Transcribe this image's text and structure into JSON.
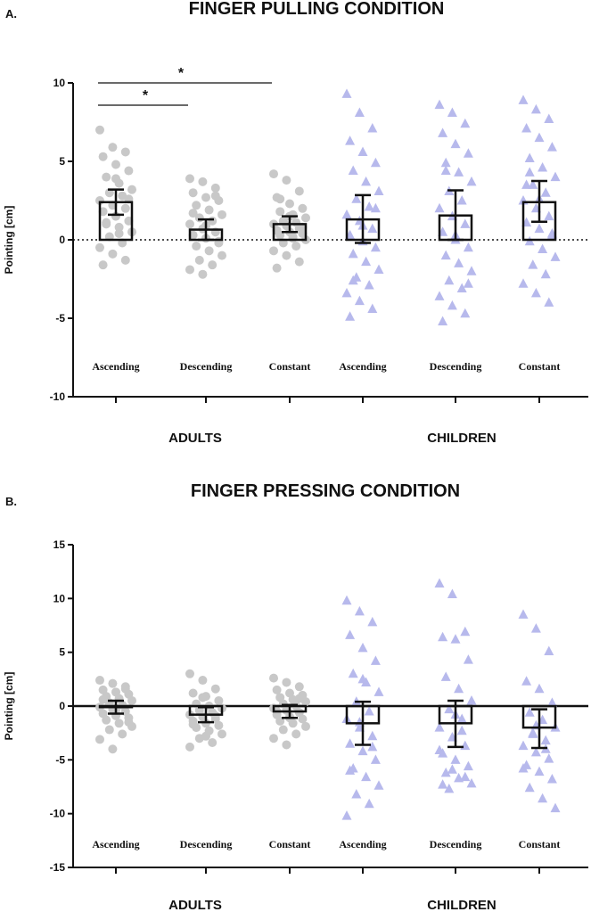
{
  "chart_data": [
    {
      "type": "bar",
      "panel": "A.",
      "title": "FINGER PULLING CONDITION",
      "ylabel": "Pointing [cm]",
      "ylim": [
        -10,
        10
      ],
      "yticks": [
        "10",
        "5",
        "0",
        "-5",
        "-10"
      ],
      "reference_line": "dotted at 0",
      "categories": [
        "Ascending",
        "Descending",
        "Constant",
        "Ascending",
        "Descending",
        "Constant"
      ],
      "groups": [
        "ADULTS",
        "CHILDREN"
      ],
      "series": [
        {
          "name": "Adults",
          "marker": "circle",
          "color": "#c8c8c8",
          "mean": [
            2.4,
            0.65,
            1.0
          ],
          "error": [
            [
              1.6,
              3.2
            ],
            [
              0.0,
              1.3
            ],
            [
              0.5,
              1.5
            ]
          ],
          "points": [
            [
              7.0,
              5.9,
              5.6,
              5.3,
              4.8,
              4.4,
              4.0,
              3.6,
              3.2,
              3.0,
              2.8,
              2.5,
              2.2,
              2.0,
              1.8,
              1.5,
              1.2,
              1.0,
              0.8,
              0.5,
              0.2,
              -0.2,
              -0.5,
              -0.9,
              -1.3,
              -1.6,
              3.9,
              2.6,
              1.1,
              0.4
            ],
            [
              3.9,
              3.7,
              3.3,
              3.0,
              2.7,
              2.5,
              2.2,
              1.9,
              1.6,
              1.4,
              1.2,
              1.0,
              0.7,
              0.5,
              0.3,
              0.1,
              -0.2,
              -0.4,
              -0.7,
              -1.0,
              -1.3,
              -1.6,
              -1.9,
              -2.2,
              2.8,
              1.7,
              0.9,
              -0.1
            ],
            [
              4.2,
              3.8,
              3.1,
              2.7,
              2.3,
              2.0,
              1.8,
              1.6,
              1.4,
              1.2,
              1.1,
              1.0,
              0.9,
              0.7,
              0.6,
              0.5,
              0.4,
              0.3,
              0.2,
              0.0,
              -0.2,
              -0.4,
              -0.7,
              -1.0,
              -1.4,
              -1.8,
              1.5,
              0.8,
              2.6,
              0.1
            ]
          ]
        },
        {
          "name": "Children",
          "marker": "triangle",
          "color": "#b7b9ec",
          "mean": [
            1.3,
            1.55,
            2.4
          ],
          "error": [
            [
              -0.2,
              2.85
            ],
            [
              0.0,
              3.15
            ],
            [
              1.15,
              3.75
            ]
          ],
          "points": [
            [
              9.3,
              8.1,
              7.1,
              6.3,
              5.6,
              4.9,
              4.4,
              3.7,
              3.1,
              2.6,
              2.1,
              1.6,
              1.2,
              0.7,
              0.3,
              -0.1,
              -0.5,
              -0.9,
              -1.4,
              -1.9,
              -2.4,
              -2.9,
              -3.4,
              -3.9,
              -4.4,
              -4.9,
              0.9,
              2.0,
              -2.6
            ],
            [
              8.6,
              8.1,
              7.4,
              6.8,
              6.1,
              5.5,
              4.9,
              4.3,
              3.7,
              3.1,
              2.5,
              2.0,
              1.5,
              1.0,
              0.5,
              0.0,
              -0.5,
              -1.0,
              -1.5,
              -2.0,
              -2.6,
              -3.1,
              -3.6,
              -4.2,
              -4.7,
              -5.2,
              0.3,
              -2.8,
              4.4
            ],
            [
              8.9,
              8.3,
              7.7,
              7.1,
              6.5,
              5.9,
              5.2,
              4.6,
              4.0,
              3.5,
              3.0,
              2.5,
              2.0,
              1.5,
              1.1,
              0.7,
              0.3,
              -0.1,
              -0.6,
              -1.1,
              -1.6,
              -2.2,
              -2.8,
              -3.4,
              -4.0,
              3.5,
              2.6,
              0.4,
              4.3
            ]
          ]
        }
      ],
      "annotations": [
        {
          "text": "*",
          "from": "Ascending",
          "to": "Descending"
        },
        {
          "text": "*",
          "from": "Ascending",
          "to": "Constant"
        }
      ]
    },
    {
      "type": "bar",
      "panel": "B.",
      "title": "FINGER PRESSING CONDITION",
      "ylabel": "Pointing [cm]",
      "ylim": [
        -15,
        15
      ],
      "yticks": [
        "15",
        "10",
        "5",
        "0",
        "-5",
        "-10",
        "-15"
      ],
      "reference_line": "solid at 0",
      "categories": [
        "Ascending",
        "Descending",
        "Constant",
        "Ascending",
        "Descending",
        "Constant"
      ],
      "groups": [
        "ADULTS",
        "CHILDREN"
      ],
      "series": [
        {
          "name": "Adults",
          "marker": "circle",
          "color": "#c8c8c8",
          "mean": [
            -0.1,
            -0.8,
            -0.5
          ],
          "error": [
            [
              -0.7,
              0.5
            ],
            [
              -1.5,
              -0.1
            ],
            [
              -1.1,
              0.1
            ]
          ],
          "points": [
            [
              2.4,
              2.1,
              1.8,
              1.5,
              1.3,
              1.1,
              0.9,
              0.7,
              0.5,
              0.3,
              0.1,
              -0.1,
              -0.3,
              -0.5,
              -0.7,
              -0.9,
              -1.1,
              -1.3,
              -1.6,
              -1.9,
              -2.2,
              -2.6,
              -3.1,
              -4.0,
              1.6,
              0.6,
              -0.4,
              -1.5
            ],
            [
              3.0,
              2.4,
              1.6,
              1.2,
              0.9,
              0.5,
              0.2,
              0.0,
              -0.2,
              -0.4,
              -0.6,
              -0.8,
              -1.0,
              -1.2,
              -1.4,
              -1.6,
              -1.8,
              -2.0,
              -2.3,
              -2.6,
              -3.0,
              -3.4,
              -3.8,
              0.8,
              -0.9,
              -1.7,
              -2.8
            ],
            [
              2.6,
              2.2,
              1.8,
              1.5,
              1.2,
              1.0,
              0.8,
              0.6,
              0.4,
              0.2,
              0.0,
              -0.2,
              -0.4,
              -0.6,
              -0.8,
              -1.0,
              -1.2,
              -1.4,
              -1.6,
              -1.9,
              -2.2,
              -2.6,
              -3.0,
              -3.6,
              0.7,
              -0.5,
              -1.1
            ]
          ]
        },
        {
          "name": "Children",
          "marker": "triangle",
          "color": "#b7b9ec",
          "mean": [
            -1.6,
            -1.6,
            -2.0
          ],
          "error": [
            [
              -3.6,
              0.4
            ],
            [
              -3.8,
              0.5
            ],
            [
              -3.9,
              -0.3
            ]
          ],
          "points": [
            [
              9.8,
              8.8,
              7.8,
              6.6,
              5.4,
              4.2,
              3.0,
              2.2,
              1.3,
              0.4,
              -0.5,
              -1.2,
              -2.0,
              -2.8,
              -3.5,
              -4.2,
              -5.0,
              -5.8,
              -6.6,
              -7.4,
              -8.2,
              -9.1,
              -10.2,
              -1.5,
              -3.8,
              -6.0,
              2.5
            ],
            [
              11.4,
              10.4,
              6.9,
              6.4,
              6.2,
              4.3,
              2.7,
              1.6,
              0.5,
              -0.3,
              -1.2,
              -2.0,
              -2.9,
              -3.7,
              -4.4,
              -5.0,
              -5.6,
              -6.2,
              -6.7,
              -7.2,
              -7.7,
              -2.3,
              -4.1,
              -5.9,
              -6.6,
              -7.3,
              -0.8
            ],
            [
              8.5,
              7.2,
              5.1,
              2.3,
              1.6,
              0.3,
              -0.6,
              -1.3,
              -2.0,
              -2.6,
              -3.2,
              -3.7,
              -4.3,
              -4.9,
              -5.5,
              -6.1,
              -6.8,
              -7.6,
              -8.6,
              -9.5,
              -2.5,
              -4.0,
              -5.8,
              -1.8
            ]
          ]
        }
      ]
    }
  ]
}
